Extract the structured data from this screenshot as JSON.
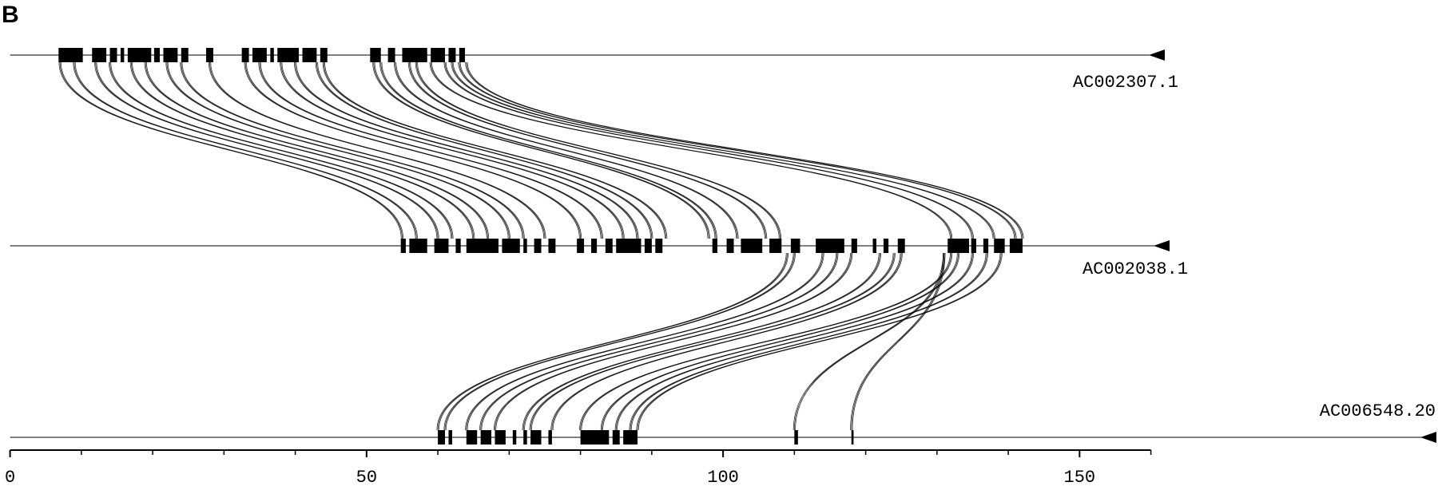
{
  "panel_label": "B",
  "tracks": [
    {
      "name": "AC002307.1",
      "blocks": [
        [
          6.8,
          7.5
        ],
        [
          7.5,
          10.2
        ],
        [
          11.5,
          13.5
        ],
        [
          14,
          15
        ],
        [
          15.5,
          16
        ],
        [
          16.5,
          19.8
        ],
        [
          20.2,
          21
        ],
        [
          21.5,
          23.5
        ],
        [
          24,
          25
        ],
        [
          27.5,
          28.5
        ],
        [
          32.5,
          33.5
        ],
        [
          34,
          36
        ],
        [
          36.5,
          37
        ],
        [
          37.5,
          40.5
        ],
        [
          41,
          43
        ],
        [
          43.5,
          44.5
        ],
        [
          50.5,
          52
        ],
        [
          53,
          54
        ],
        [
          55,
          58.5
        ],
        [
          59,
          61
        ],
        [
          61.5,
          62.5
        ],
        [
          63,
          63.8
        ]
      ]
    },
    {
      "name": "AC002038.1",
      "blocks": [
        [
          54.8,
          55.5
        ],
        [
          56,
          58.5
        ],
        [
          59.5,
          61.5
        ],
        [
          62.5,
          63.2
        ],
        [
          64,
          68.5
        ],
        [
          69,
          71.5
        ],
        [
          72,
          72.5
        ],
        [
          73.5,
          74.5
        ],
        [
          75.5,
          76.5
        ],
        [
          79.5,
          80.5
        ],
        [
          81.5,
          82.3
        ],
        [
          83.5,
          84.5
        ],
        [
          85,
          88.5
        ],
        [
          89,
          90
        ],
        [
          90.5,
          91.5
        ],
        [
          98.5,
          99.2
        ],
        [
          100.5,
          101.5
        ],
        [
          102.5,
          105.5
        ],
        [
          106.5,
          108.2
        ],
        [
          109.5,
          110.8
        ],
        [
          113,
          117
        ],
        [
          118,
          118.8
        ],
        [
          121,
          121.5
        ],
        [
          122.5,
          123.2
        ],
        [
          124.5,
          125.5
        ],
        [
          131.5,
          134.5
        ],
        [
          134.8,
          135.5
        ],
        [
          136.5,
          137.2
        ],
        [
          138,
          139.5
        ],
        [
          140.2,
          142
        ]
      ]
    },
    {
      "name": "AC006548.20",
      "blocks": [
        [
          60,
          61
        ],
        [
          61.5,
          62
        ],
        [
          64,
          65.5
        ],
        [
          66,
          67.5
        ],
        [
          68,
          69.5
        ],
        [
          70.5,
          71
        ],
        [
          72,
          72.5
        ],
        [
          73,
          74.5
        ],
        [
          75.5,
          76
        ],
        [
          80,
          84
        ],
        [
          84.5,
          85.5
        ],
        [
          86,
          88
        ],
        [
          110,
          110.5
        ],
        [
          118,
          118.3
        ]
      ]
    }
  ],
  "links": [
    {
      "pairs": [
        [
          7,
          55
        ],
        [
          9,
          57
        ],
        [
          12,
          60
        ],
        [
          14,
          62
        ],
        [
          17,
          65
        ],
        [
          19,
          67
        ],
        [
          22,
          70
        ],
        [
          24,
          72
        ],
        [
          28,
          75
        ],
        [
          33,
          80
        ],
        [
          35,
          83
        ],
        [
          38,
          86
        ],
        [
          40,
          88
        ],
        [
          43,
          90
        ],
        [
          44,
          92
        ],
        [
          51,
          98
        ],
        [
          52,
          99
        ],
        [
          54,
          102
        ],
        [
          56,
          106
        ],
        [
          57,
          108
        ],
        [
          59,
          132
        ],
        [
          61,
          135
        ],
        [
          62,
          138
        ],
        [
          63,
          141
        ],
        [
          64,
          142
        ]
      ]
    },
    {
      "pairs": [
        [
          109,
          60
        ],
        [
          110,
          61
        ],
        [
          114,
          64
        ],
        [
          116,
          66
        ],
        [
          118,
          68
        ],
        [
          122,
          72
        ],
        [
          124,
          73
        ],
        [
          125,
          76
        ],
        [
          132,
          80
        ],
        [
          133,
          83
        ],
        [
          135,
          85
        ],
        [
          137,
          87
        ],
        [
          139,
          88
        ],
        [
          131,
          110
        ],
        [
          131,
          118
        ]
      ]
    }
  ],
  "axis": {
    "xlim": [
      0,
      160
    ],
    "xticks": [
      0,
      50,
      100,
      150
    ],
    "minor_ticks": [
      10,
      20,
      30,
      40,
      60,
      70,
      80,
      90,
      110,
      120,
      130,
      140,
      160
    ]
  }
}
